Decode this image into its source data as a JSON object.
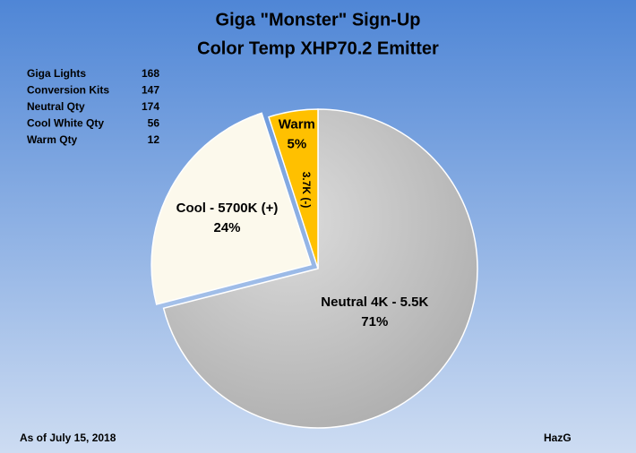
{
  "chart_data": {
    "type": "pie",
    "title": "Giga \"Monster\" Sign-Up",
    "subtitle": "Color Temp XHP70.2 Emitter",
    "categories": [
      "Neutral 4K - 5.5K",
      "Cool - 5700K (+)",
      "Warm"
    ],
    "values": [
      71,
      24,
      5
    ],
    "value_labels": [
      "71%",
      "24%",
      "5%"
    ],
    "colors": [
      "#c4c4c4",
      "#fcf9ec",
      "#ffc000"
    ],
    "exploded": [
      false,
      true,
      false
    ],
    "annotation": "3.7K (-)",
    "table": [
      {
        "label": "Giga Lights",
        "value": 168
      },
      {
        "label": "Conversion Kits",
        "value": 147
      },
      {
        "label": "Neutral  Qty",
        "value": 174
      },
      {
        "label": "Cool White  Qty",
        "value": 56
      },
      {
        "label": "Warm Qty",
        "value": 12
      }
    ],
    "footnote": "As of July 15, 2018",
    "credit": "HazG"
  }
}
